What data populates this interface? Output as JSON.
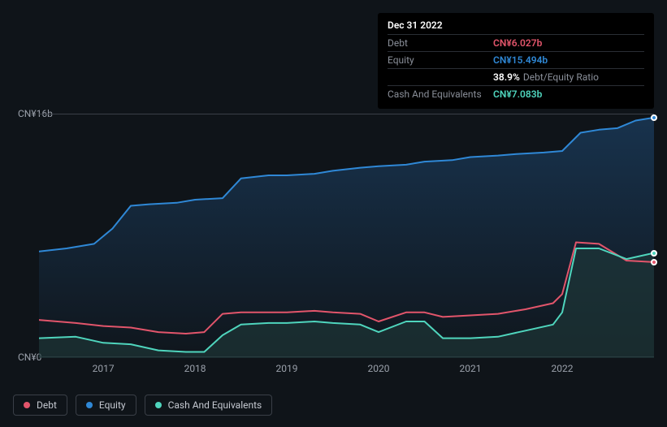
{
  "tooltip": {
    "title": "Dec 31 2022",
    "rows": [
      {
        "label": "Debt",
        "value": "CN¥6.027b",
        "color": "#e2556b"
      },
      {
        "label": "Equity",
        "value": "CN¥15.494b",
        "color": "#2f88d6"
      },
      {
        "label": "",
        "ratio_pct": "38.9%",
        "ratio_label": "Debt/Equity Ratio"
      },
      {
        "label": "Cash And Equivalents",
        "value": "CN¥7.083b",
        "color": "#4fd5bd"
      }
    ]
  },
  "chart": {
    "type": "area",
    "background_color": "#0f1419",
    "grid_color": "#3a3f47",
    "y_axis": {
      "min": 0,
      "max": 16,
      "labels": [
        {
          "v": 16,
          "text": "CN¥16b"
        },
        {
          "v": 0,
          "text": "CN¥0"
        }
      ],
      "label_fontsize": 12,
      "label_color": "#9aa0aa"
    },
    "x_axis": {
      "min": 2016.3,
      "max": 2023.0,
      "ticks": [
        2017,
        2018,
        2019,
        2020,
        2021,
        2022
      ],
      "label_fontsize": 12,
      "label_color": "#9aa0aa"
    },
    "series": [
      {
        "name": "Equity",
        "stroke": "#2f88d6",
        "fill": "#1a3a5a",
        "fill_opacity": 0.55,
        "stroke_width": 2,
        "points": [
          [
            2016.3,
            7.0
          ],
          [
            2016.6,
            7.2
          ],
          [
            2016.9,
            7.5
          ],
          [
            2017.1,
            8.5
          ],
          [
            2017.3,
            10.0
          ],
          [
            2017.5,
            10.1
          ],
          [
            2017.8,
            10.2
          ],
          [
            2018.0,
            10.4
          ],
          [
            2018.3,
            10.5
          ],
          [
            2018.5,
            11.8
          ],
          [
            2018.8,
            12.0
          ],
          [
            2019.0,
            12.0
          ],
          [
            2019.3,
            12.1
          ],
          [
            2019.5,
            12.3
          ],
          [
            2019.8,
            12.5
          ],
          [
            2020.0,
            12.6
          ],
          [
            2020.3,
            12.7
          ],
          [
            2020.5,
            12.9
          ],
          [
            2020.8,
            13.0
          ],
          [
            2021.0,
            13.2
          ],
          [
            2021.3,
            13.3
          ],
          [
            2021.5,
            13.4
          ],
          [
            2021.8,
            13.5
          ],
          [
            2022.0,
            13.6
          ],
          [
            2022.2,
            14.8
          ],
          [
            2022.4,
            15.0
          ],
          [
            2022.6,
            15.1
          ],
          [
            2022.8,
            15.6
          ],
          [
            2023.0,
            15.8
          ]
        ]
      },
      {
        "name": "Cash And Equivalents",
        "stroke": "#4fd5bd",
        "fill": "#1f3b3a",
        "fill_opacity": 0.6,
        "stroke_width": 2,
        "points": [
          [
            2016.3,
            1.3
          ],
          [
            2016.7,
            1.4
          ],
          [
            2017.0,
            1.0
          ],
          [
            2017.3,
            0.9
          ],
          [
            2017.6,
            0.5
          ],
          [
            2017.9,
            0.4
          ],
          [
            2018.1,
            0.4
          ],
          [
            2018.3,
            1.5
          ],
          [
            2018.5,
            2.2
          ],
          [
            2018.8,
            2.3
          ],
          [
            2019.0,
            2.3
          ],
          [
            2019.3,
            2.4
          ],
          [
            2019.5,
            2.3
          ],
          [
            2019.8,
            2.2
          ],
          [
            2020.0,
            1.7
          ],
          [
            2020.3,
            2.4
          ],
          [
            2020.5,
            2.4
          ],
          [
            2020.7,
            1.3
          ],
          [
            2021.0,
            1.3
          ],
          [
            2021.3,
            1.4
          ],
          [
            2021.6,
            1.8
          ],
          [
            2021.9,
            2.2
          ],
          [
            2022.0,
            3.0
          ],
          [
            2022.15,
            7.2
          ],
          [
            2022.4,
            7.2
          ],
          [
            2022.7,
            6.5
          ],
          [
            2023.0,
            6.9
          ]
        ]
      },
      {
        "name": "Debt",
        "stroke": "#e2556b",
        "fill": "none",
        "fill_opacity": 0,
        "stroke_width": 2,
        "points": [
          [
            2016.3,
            2.5
          ],
          [
            2016.7,
            2.3
          ],
          [
            2017.0,
            2.1
          ],
          [
            2017.3,
            2.0
          ],
          [
            2017.6,
            1.7
          ],
          [
            2017.9,
            1.6
          ],
          [
            2018.1,
            1.7
          ],
          [
            2018.3,
            2.9
          ],
          [
            2018.5,
            3.0
          ],
          [
            2018.8,
            3.0
          ],
          [
            2019.0,
            3.0
          ],
          [
            2019.3,
            3.1
          ],
          [
            2019.5,
            3.0
          ],
          [
            2019.8,
            2.9
          ],
          [
            2020.0,
            2.4
          ],
          [
            2020.3,
            3.0
          ],
          [
            2020.5,
            3.0
          ],
          [
            2020.7,
            2.7
          ],
          [
            2021.0,
            2.8
          ],
          [
            2021.3,
            2.9
          ],
          [
            2021.6,
            3.2
          ],
          [
            2021.9,
            3.6
          ],
          [
            2022.0,
            4.2
          ],
          [
            2022.15,
            7.6
          ],
          [
            2022.4,
            7.5
          ],
          [
            2022.7,
            6.4
          ],
          [
            2023.0,
            6.3
          ]
        ]
      }
    ],
    "end_markers": [
      {
        "series": "Equity",
        "color": "#2f88d6",
        "x": 2023.0,
        "y": 15.8
      },
      {
        "series": "Cash And Equivalents",
        "color": "#4fd5bd",
        "x": 2023.0,
        "y": 6.9
      },
      {
        "series": "Debt",
        "color": "#e2556b",
        "x": 2023.0,
        "y": 6.3
      }
    ]
  },
  "legend": {
    "items": [
      {
        "name": "Debt",
        "color": "#e2556b"
      },
      {
        "name": "Equity",
        "color": "#2f88d6"
      },
      {
        "name": "Cash And Equivalents",
        "color": "#4fd5bd"
      }
    ]
  }
}
